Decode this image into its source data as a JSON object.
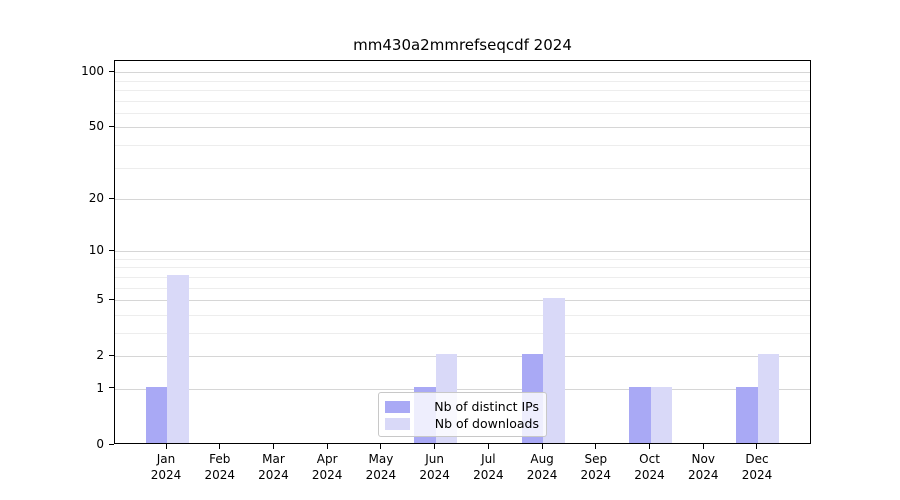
{
  "chart_data": {
    "type": "bar",
    "title": "mm430a2mmrefseqcdf 2024",
    "year_label": "2024",
    "categories": [
      "Jan",
      "Feb",
      "Mar",
      "Apr",
      "May",
      "Jun",
      "Jul",
      "Aug",
      "Sep",
      "Oct",
      "Nov",
      "Dec"
    ],
    "series": [
      {
        "name": "Nb of distinct IPs",
        "color": "#a9a9f5",
        "values": [
          1,
          0,
          0,
          0,
          0,
          1,
          0,
          2,
          0,
          1,
          0,
          1
        ]
      },
      {
        "name": "Nb of downloads",
        "color": "#d9d9f8",
        "values": [
          7,
          0,
          0,
          0,
          0,
          2,
          0,
          5,
          0,
          1,
          0,
          2
        ]
      }
    ],
    "yscale": "log1p",
    "yticks": [
      0,
      1,
      2,
      5,
      10,
      20,
      50,
      100
    ],
    "minor_gridlines": [
      3,
      4,
      6,
      7,
      8,
      9,
      30,
      40,
      60,
      70,
      80,
      90
    ],
    "ylim": [
      0,
      110
    ],
    "grid": true,
    "legend_position": "lower center"
  }
}
